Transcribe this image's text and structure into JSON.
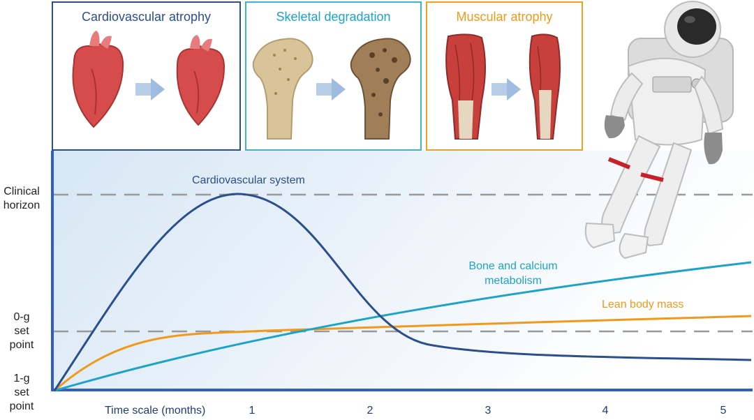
{
  "panels": [
    {
      "title": "Cardiovascular atrophy"
    },
    {
      "title": "Skeletal degradation"
    },
    {
      "title": "Muscular atrophy"
    }
  ],
  "y_labels": {
    "clinical_horizon": [
      "Clinical",
      "horizon"
    ],
    "zero_g": [
      "0-g",
      "set",
      "point"
    ],
    "one_g": [
      "1-g",
      "set",
      "point"
    ]
  },
  "x_axis": {
    "label": "Time scale (months)",
    "ticks": [
      "1",
      "2",
      "3",
      "4",
      "5"
    ]
  },
  "curves": {
    "cardio": {
      "label": "Cardiovascular system",
      "color": "#2b4f8c"
    },
    "bone": {
      "label_line1": "Bone and calcium",
      "label_line2": "metabolism",
      "color": "#1ea3c8"
    },
    "lean": {
      "label": "Lean body mass",
      "color": "#f0991a"
    }
  },
  "colors": {
    "axis": "#2f5fc4",
    "dashed": "#999999",
    "heart": "#d64c4c",
    "bone": "#d9c49a",
    "bone_degraded": "#8a6a48",
    "muscle": "#c8403c",
    "suit": "#eeeeee",
    "suit_band": "#c8202a"
  }
}
